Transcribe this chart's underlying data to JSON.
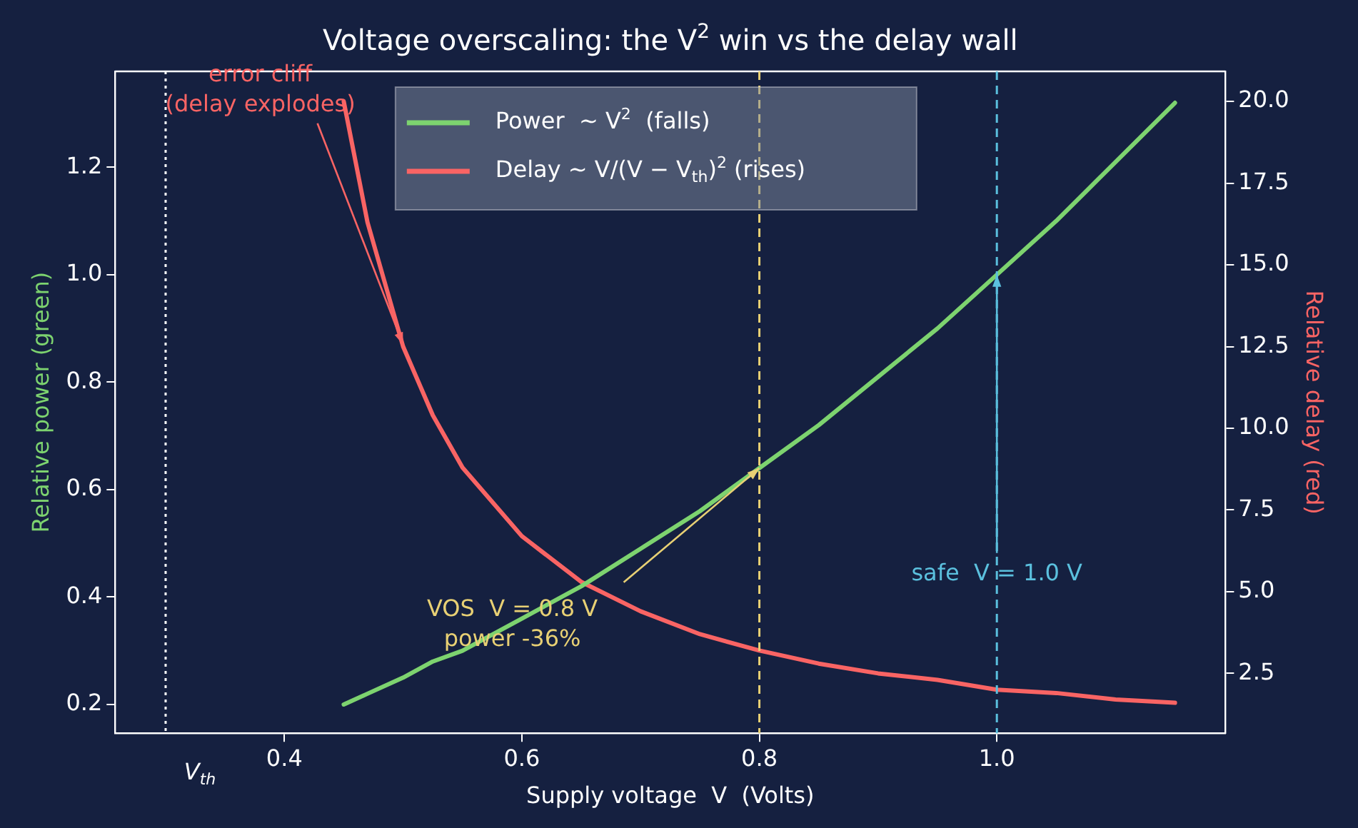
{
  "chart_data": {
    "type": "line",
    "title": "Voltage overscaling: the V$^{2}$ win vs the delay wall",
    "xlabel": "Supply voltage  V  (Volts)",
    "ylabel": "Relative power (green)",
    "y2label": "Relative delay (red)",
    "x": [
      0.45,
      0.47,
      0.5,
      0.525,
      0.55,
      0.6,
      0.65,
      0.7,
      0.75,
      0.8,
      0.85,
      0.9,
      0.95,
      1.0,
      1.05,
      1.1,
      1.15
    ],
    "series": [
      {
        "name": "Power  ~ V$^{2}$  (falls)",
        "color": "#7dd36f",
        "values": [
          0.2,
          0.22,
          0.25,
          0.28,
          0.3,
          0.36,
          0.42,
          0.49,
          0.56,
          0.64,
          0.72,
          0.81,
          0.9,
          1.0,
          1.1,
          1.21,
          1.32
        ]
      },
      {
        "name": "Delay ~ V/(V − V$_{th}$)$^{2}$ (rises)",
        "color": "#f96464",
        "axis": "y2",
        "values": [
          20.0,
          16.3,
          12.5,
          10.4,
          8.8,
          6.7,
          5.3,
          4.4,
          3.7,
          3.2,
          2.8,
          2.5,
          2.3,
          2.0,
          1.9,
          1.7,
          1.6
        ]
      }
    ],
    "xlim": [
      0.2575,
      1.1925
    ],
    "xticks": [
      0.4,
      0.6,
      0.8,
      {
        "value": 1,
        "label": "1.0"
      }
    ],
    "ylim": [
      0.1465,
      1.3785
    ],
    "yticks": [
      0.2,
      0.4,
      0.6,
      0.8,
      {
        "value": 1,
        "label": "1.0"
      },
      1.2
    ],
    "y2lim": [
      0.67,
      20.92
    ],
    "y2ticks": [
      2.5,
      {
        "value": 5,
        "label": "5.0"
      },
      7.5,
      {
        "value": 10,
        "label": "10.0"
      },
      12.5,
      {
        "value": 15,
        "label": "15.0"
      },
      17.5,
      {
        "value": 20,
        "label": "20.0"
      }
    ],
    "ref_lines": [
      {
        "axis": "x",
        "value": 0.3,
        "label": "V$_{th}$",
        "color": "#ffffff",
        "line_style": "dotted"
      },
      {
        "axis": "x",
        "value": 0.8,
        "color": "#e8d074",
        "line_style": "dashed"
      },
      {
        "axis": "x",
        "value": 1.0,
        "color": "#5bc0de",
        "line_style": "dashed"
      }
    ],
    "annotations": [
      {
        "text": "error cliff\n(delay explodes)",
        "x": 0.5,
        "y": 0.87
      },
      {
        "text": "VOS  V = 0.8 V\npower -36%",
        "x": 0.8,
        "y": 0.64
      },
      {
        "text": "safe  V = 1.0 V",
        "x": 1.0,
        "y": 1.0
      }
    ],
    "legend": "top",
    "grid": false,
    "marker": "none",
    "line_style": "solid"
  }
}
